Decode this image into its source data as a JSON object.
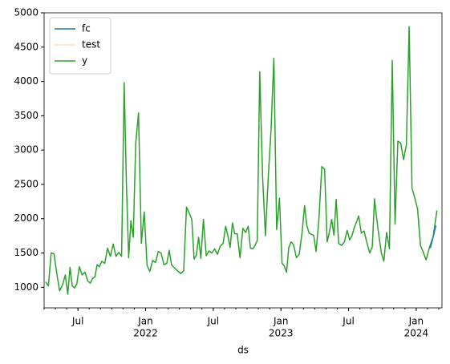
{
  "chart_data": {
    "type": "line",
    "x_label": "ds",
    "xlim": [
      "2021-04",
      "2024-03"
    ],
    "xticks": [
      {
        "value": "2021-07",
        "label": "Jul"
      },
      {
        "value": "2022-01",
        "label": "Jan",
        "sublabel": "2022"
      },
      {
        "value": "2022-07",
        "label": "Jul"
      },
      {
        "value": "2023-01",
        "label": "Jan",
        "sublabel": "2023"
      },
      {
        "value": "2023-07",
        "label": "Jul"
      },
      {
        "value": "2024-01",
        "label": "Jan",
        "sublabel": "2024"
      }
    ],
    "ylim": [
      700,
      5000
    ],
    "yticks": [
      1000,
      1500,
      2000,
      2500,
      3000,
      3500,
      4000,
      4500,
      5000
    ],
    "legend": "upper left",
    "series": [
      {
        "name": "fc",
        "color": "#1f77b4",
        "x": [
          "2024-02",
          "2024-02"
        ],
        "values": [
          1570,
          1900
        ]
      },
      {
        "name": "test",
        "color": "#ffdcc0",
        "x": [
          "2024-01",
          "2024-01",
          "2024-01",
          "2024-01"
        ],
        "values": [
          2140,
          1610,
          1510,
          1400
        ]
      },
      {
        "name": "y",
        "color": "#2ca02c",
        "x": [
          "2021-04",
          "2021-04",
          "2021-04",
          "2021-04",
          "2021-05",
          "2021-05",
          "2021-05",
          "2021-05",
          "2021-06",
          "2021-06",
          "2021-06",
          "2021-06",
          "2021-06",
          "2021-07",
          "2021-07",
          "2021-07",
          "2021-07",
          "2021-08",
          "2021-08",
          "2021-08",
          "2021-08",
          "2021-08",
          "2021-09",
          "2021-09",
          "2021-09",
          "2021-09",
          "2021-10",
          "2021-10",
          "2021-10",
          "2021-10",
          "2021-11",
          "2021-11",
          "2021-11",
          "2021-11",
          "2021-11",
          "2021-12",
          "2021-12",
          "2021-12",
          "2021-12",
          "2022-01",
          "2022-01",
          "2022-01",
          "2022-01",
          "2022-02",
          "2022-02",
          "2022-02",
          "2022-02",
          "2022-03",
          "2022-03",
          "2022-03",
          "2022-03",
          "2022-03",
          "2022-04",
          "2022-04",
          "2022-04",
          "2022-04",
          "2022-05",
          "2022-05",
          "2022-05",
          "2022-05",
          "2022-05",
          "2022-06",
          "2022-06",
          "2022-06",
          "2022-06",
          "2022-07",
          "2022-07",
          "2022-07",
          "2022-07",
          "2022-08",
          "2022-08",
          "2022-08",
          "2022-08",
          "2022-08",
          "2022-09",
          "2022-09",
          "2022-09",
          "2022-09",
          "2022-10",
          "2022-10",
          "2022-10",
          "2022-10",
          "2022-10",
          "2022-11",
          "2022-11",
          "2022-11",
          "2022-11",
          "2022-12",
          "2022-12",
          "2022-12",
          "2022-12",
          "2023-01",
          "2023-01",
          "2023-01",
          "2023-01",
          "2023-01",
          "2023-02",
          "2023-02",
          "2023-02",
          "2023-02",
          "2023-03",
          "2023-03",
          "2023-03",
          "2023-03",
          "2023-03",
          "2023-04",
          "2023-04",
          "2023-04",
          "2023-04",
          "2023-05",
          "2023-05",
          "2023-05",
          "2023-05",
          "2023-05",
          "2023-06",
          "2023-06",
          "2023-06",
          "2023-06",
          "2023-07",
          "2023-07",
          "2023-07",
          "2023-07",
          "2023-07",
          "2023-08",
          "2023-08",
          "2023-08",
          "2023-08",
          "2023-09",
          "2023-09",
          "2023-09",
          "2023-09",
          "2023-09",
          "2023-10",
          "2023-10",
          "2023-10",
          "2023-10",
          "2023-11",
          "2023-11",
          "2023-11",
          "2023-11",
          "2023-12",
          "2023-12",
          "2023-12",
          "2023-12",
          "2024-01",
          "2024-01",
          "2024-01",
          "2024-01",
          "2024-02",
          "2024-02",
          "2024-02"
        ],
        "values": [
          1080,
          1020,
          1500,
          1490,
          1200,
          950,
          1030,
          1180,
          900,
          1290,
          1020,
          990,
          1050,
          1300,
          1180,
          1220,
          1090,
          1060,
          1130,
          1150,
          1330,
          1300,
          1380,
          1350,
          1570,
          1450,
          1630,
          1450,
          1510,
          1450,
          3980,
          2500,
          1430,
          1970,
          1730,
          3100,
          3540,
          1640,
          2100,
          1320,
          1230,
          1390,
          1360,
          1520,
          1500,
          1330,
          1350,
          1540,
          1330,
          1290,
          1260,
          1230,
          1200,
          1240,
          2170,
          2080,
          1990,
          1410,
          1470,
          1730,
          1420,
          1990,
          1460,
          1530,
          1500,
          1560,
          1480,
          1600,
          1640,
          1890,
          1750,
          1580,
          1940,
          1780,
          1780,
          1430,
          1860,
          1800,
          1890,
          1570,
          1560,
          1610,
          1680,
          4140,
          2600,
          1750,
          2600,
          3300,
          4340,
          1840,
          2300,
          1350,
          1310,
          1220,
          1580,
          1660,
          1620,
          1430,
          1480,
          1800,
          2190,
          1900,
          1790,
          1770,
          1760,
          1520,
          2000,
          2760,
          2720,
          1660,
          1800,
          1990,
          1760,
          2280,
          1640,
          1610,
          1660,
          1830,
          1690,
          1750,
          1870,
          1950,
          2040,
          1790,
          1820,
          1650,
          1500,
          1590,
          2290,
          1990,
          1740,
          1510,
          1380,
          1800,
          1560,
          4310,
          1920,
          3130,
          3100,
          2860,
          3080,
          4800,
          2450,
          2300,
          2140,
          1610,
          1510,
          1400,
          1580,
          1740,
          2120
        ]
      }
    ]
  }
}
